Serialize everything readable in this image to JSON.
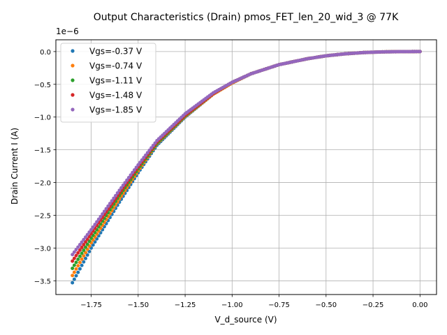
{
  "chart_data": {
    "type": "scatter",
    "title": "Output Characteristics (Drain) pmos_FET_len_20_wid_3 @ 77K",
    "xlabel": "V_d_source (V)",
    "ylabel": "Drain Current I (A)",
    "y_offset_label": "1e−6",
    "y_scale": 1e-06,
    "xlim": [
      -1.938,
      0.088
    ],
    "ylim": [
      -3.71,
      0.18
    ],
    "x_ticks": [
      -1.75,
      -1.5,
      -1.25,
      -1.0,
      -0.75,
      -0.5,
      -0.25,
      0.0
    ],
    "x_tick_labels": [
      "−1.75",
      "−1.50",
      "−1.25",
      "−1.00",
      "−0.75",
      "−0.50",
      "−0.25",
      "0.00"
    ],
    "y_ticks": [
      0.0,
      -0.5,
      -1.0,
      -1.5,
      -2.0,
      -2.5,
      -3.0,
      -3.5
    ],
    "y_tick_labels": [
      "0.0",
      "−0.5",
      "−1.0",
      "−1.5",
      "−2.0",
      "−2.5",
      "−3.0",
      "−3.5"
    ],
    "grid": true,
    "legend_position": "top-left",
    "series": [
      {
        "name": "Vgs=-0.37 V",
        "color": "#1f77b4",
        "x": [
          -1.85,
          -1.75,
          -1.6,
          -1.5,
          -1.4,
          -1.25,
          -1.1,
          -1.0,
          -0.9,
          -0.75,
          -0.6,
          -0.5,
          -0.4,
          -0.3,
          -0.2,
          -0.1,
          0.0
        ],
        "y": [
          -3.53,
          -3.0,
          -2.3,
          -1.85,
          -1.43,
          -1.0,
          -0.65,
          -0.48,
          -0.34,
          -0.2,
          -0.11,
          -0.065,
          -0.035,
          -0.015,
          -0.005,
          -0.001,
          0.0
        ]
      },
      {
        "name": "Vgs=-0.74 V",
        "color": "#ff7f0e",
        "x": [
          -1.85,
          -1.75,
          -1.6,
          -1.5,
          -1.4,
          -1.25,
          -1.1,
          -1.0,
          -0.9,
          -0.75,
          -0.6,
          -0.5,
          -0.4,
          -0.3,
          -0.2,
          -0.1,
          0.0
        ],
        "y": [
          -3.42,
          -2.92,
          -2.25,
          -1.82,
          -1.41,
          -0.99,
          -0.65,
          -0.48,
          -0.34,
          -0.2,
          -0.11,
          -0.065,
          -0.035,
          -0.015,
          -0.005,
          -0.001,
          0.0
        ]
      },
      {
        "name": "Vgs=-1.11 V",
        "color": "#2ca02c",
        "x": [
          -1.85,
          -1.75,
          -1.6,
          -1.5,
          -1.4,
          -1.25,
          -1.1,
          -1.0,
          -0.9,
          -0.75,
          -0.6,
          -0.5,
          -0.4,
          -0.3,
          -0.2,
          -0.1,
          0.0
        ],
        "y": [
          -3.31,
          -2.85,
          -2.2,
          -1.79,
          -1.4,
          -0.98,
          -0.64,
          -0.47,
          -0.34,
          -0.2,
          -0.11,
          -0.065,
          -0.035,
          -0.015,
          -0.005,
          -0.001,
          0.0
        ]
      },
      {
        "name": "Vgs=-1.48 V",
        "color": "#d62728",
        "x": [
          -1.85,
          -1.75,
          -1.6,
          -1.5,
          -1.4,
          -1.25,
          -1.1,
          -1.0,
          -0.9,
          -0.75,
          -0.6,
          -0.5,
          -0.4,
          -0.3,
          -0.2,
          -0.1,
          0.0
        ],
        "y": [
          -3.2,
          -2.78,
          -2.16,
          -1.76,
          -1.38,
          -0.97,
          -0.64,
          -0.47,
          -0.34,
          -0.2,
          -0.11,
          -0.065,
          -0.035,
          -0.015,
          -0.005,
          -0.001,
          0.0
        ]
      },
      {
        "name": "Vgs=-1.85 V",
        "color": "#9467bd",
        "x": [
          -1.85,
          -1.75,
          -1.6,
          -1.5,
          -1.4,
          -1.25,
          -1.1,
          -1.0,
          -0.9,
          -0.75,
          -0.6,
          -0.5,
          -0.4,
          -0.3,
          -0.2,
          -0.1,
          0.0
        ],
        "y": [
          -3.1,
          -2.72,
          -2.12,
          -1.73,
          -1.36,
          -0.95,
          -0.63,
          -0.47,
          -0.34,
          -0.2,
          -0.11,
          -0.065,
          -0.035,
          -0.015,
          -0.005,
          -0.001,
          0.0
        ]
      }
    ]
  }
}
